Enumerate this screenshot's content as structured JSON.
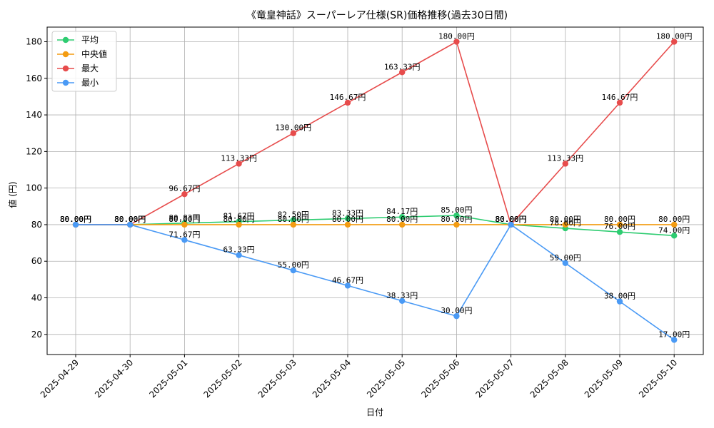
{
  "chart_data": {
    "type": "line",
    "title": "《竜皇神話》スーパーレア仕様(SR)価格推移(過去30日間)",
    "xlabel": "日付",
    "ylabel": "値 (円)",
    "ylim": [
      9,
      188
    ],
    "yticks": [
      20,
      40,
      60,
      80,
      100,
      120,
      140,
      160,
      180
    ],
    "grid": true,
    "legend_position": "top-left",
    "categories": [
      "2025-04-29",
      "2025-04-30",
      "2025-05-01",
      "2025-05-02",
      "2025-05-03",
      "2025-05-04",
      "2025-05-05",
      "2025-05-06",
      "2025-05-07",
      "2025-05-08",
      "2025-05-09",
      "2025-05-10"
    ],
    "series": [
      {
        "name": "平均",
        "color": "#2ecc71",
        "values": [
          80.0,
          80.0,
          80.83,
          81.67,
          82.5,
          83.33,
          84.17,
          85.0,
          80.0,
          78.0,
          76.0,
          74.0
        ]
      },
      {
        "name": "中央値",
        "color": "#f39c12",
        "values": [
          80.0,
          80.0,
          80.0,
          80.0,
          80.0,
          80.0,
          80.0,
          80.0,
          80.0,
          80.0,
          80.0,
          80.0
        ]
      },
      {
        "name": "最大",
        "color": "#e74c4c",
        "values": [
          80.0,
          80.0,
          96.67,
          113.33,
          130.0,
          146.67,
          163.33,
          180.0,
          80.0,
          113.33,
          146.67,
          180.0
        ]
      },
      {
        "name": "最小",
        "color": "#4a9af5",
        "values": [
          80.0,
          80.0,
          71.67,
          63.33,
          55.0,
          46.67,
          38.33,
          30.0,
          80.0,
          59.0,
          38.0,
          17.0
        ]
      }
    ],
    "label_suffix": "円"
  }
}
